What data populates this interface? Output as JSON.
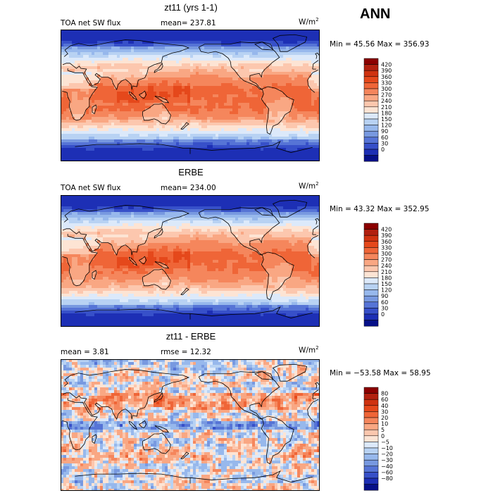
{
  "header": {
    "label": "ANN"
  },
  "chart_data": [
    {
      "type": "heatmap",
      "title": "zt11 (yrs 1-1)",
      "left_label": "TOA net SW flux",
      "stat_label": "mean=",
      "stat_value": "237.81",
      "units": "W/m",
      "units_exp": "2",
      "min_max": "Min =  45.56 Max = 356.93",
      "colorbar_ticks": [
        "420",
        "390",
        "360",
        "330",
        "300",
        "270",
        "240",
        "210",
        "180",
        "150",
        "120",
        "90",
        "60",
        "30",
        "0"
      ],
      "colorbar_colors": [
        "#8b0000",
        "#b2200f",
        "#cf3210",
        "#e5481b",
        "#ef6537",
        "#f5865c",
        "#f9a783",
        "#fcc7ae",
        "#fde4d4",
        "#dce9fa",
        "#b8d2f3",
        "#97b8ec",
        "#7899e0",
        "#5674d6",
        "#3750c9",
        "#1d2fb5",
        "#061088"
      ],
      "field_scale": [
        0,
        420
      ],
      "field_kind": "sw_model"
    },
    {
      "type": "heatmap",
      "title": "ERBE",
      "left_label": "TOA net SW flux",
      "stat_label": "mean=",
      "stat_value": "234.00",
      "units": "W/m",
      "units_exp": "2",
      "min_max": "Min =  43.32 Max = 352.95",
      "colorbar_ticks": [
        "420",
        "390",
        "360",
        "330",
        "300",
        "270",
        "240",
        "210",
        "180",
        "150",
        "120",
        "90",
        "60",
        "30",
        "0"
      ],
      "colorbar_colors": [
        "#8b0000",
        "#b2200f",
        "#cf3210",
        "#e5481b",
        "#ef6537",
        "#f5865c",
        "#f9a783",
        "#fcc7ae",
        "#fde4d4",
        "#dce9fa",
        "#b8d2f3",
        "#97b8ec",
        "#7899e0",
        "#5674d6",
        "#3750c9",
        "#1d2fb5",
        "#061088"
      ],
      "field_scale": [
        0,
        420
      ],
      "field_kind": "sw_obs"
    },
    {
      "type": "heatmap",
      "title": "zt11 - ERBE",
      "left_label": "mean =   3.81",
      "stat_label": "rmse =",
      "stat_value": "12.32",
      "units": "W/m",
      "units_exp": "2",
      "min_max": "Min = −53.58 Max =  58.95",
      "colorbar_ticks": [
        "80",
        "60",
        "40",
        "30",
        "20",
        "10",
        "5",
        "0",
        "−5",
        "−10",
        "−20",
        "−30",
        "−40",
        "−60",
        "−80"
      ],
      "colorbar_colors": [
        "#8b0000",
        "#b2200f",
        "#cf3210",
        "#e5481b",
        "#ef6537",
        "#f5865c",
        "#f9a783",
        "#fcc7ae",
        "#fde4d4",
        "#dce9fa",
        "#b8d2f3",
        "#97b8ec",
        "#7899e0",
        "#5674d6",
        "#3750c9",
        "#1d2fb5",
        "#061088"
      ],
      "field_scale": [
        -80,
        80
      ],
      "field_kind": "diff"
    }
  ]
}
